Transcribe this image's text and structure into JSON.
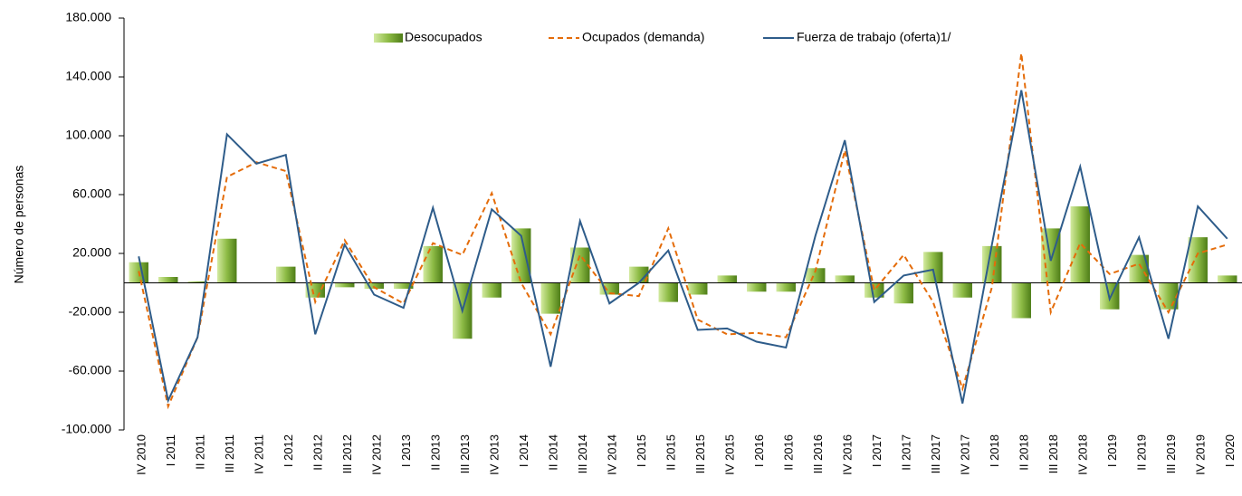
{
  "chart_data": {
    "type": "combo",
    "y_label": "Número de personas",
    "categories": [
      "IV 2010",
      "I 2011",
      "II 2011",
      "III 2011",
      "IV 2011",
      "I 2012",
      "II 2012",
      "III 2012",
      "IV 2012",
      "I 2013",
      "II 2013",
      "III 2013",
      "IV 2013",
      "I 2014",
      "II 2014",
      "III 2014",
      "IV 2014",
      "I 2015",
      "II 2015",
      "III 2015",
      "IV 2015",
      "I 2016",
      "II 2016",
      "III 2016",
      "IV 2016",
      "I 2017",
      "II 2017",
      "III 2017",
      "IV 2017",
      "I 2018",
      "II 2018",
      "III 2018",
      "IV 2018",
      "I 2019",
      "II 2019",
      "III 2019",
      "IV 2019",
      "I 2020"
    ],
    "series": [
      {
        "name": "Desocupados",
        "type": "bar",
        "color": "#77a832",
        "values": [
          14000,
          4000,
          1000,
          30000,
          0,
          11000,
          -10000,
          -3000,
          -4000,
          -4000,
          25000,
          -38000,
          -10000,
          37000,
          -21000,
          24000,
          -8000,
          11000,
          -13000,
          -8000,
          5000,
          -6000,
          -6000,
          10000,
          5000,
          -10000,
          -14000,
          21000,
          -10000,
          25000,
          -24000,
          37000,
          52000,
          -18000,
          19000,
          -18000,
          31000,
          5000
        ]
      },
      {
        "name": "Ocupados (demanda)",
        "type": "line",
        "dashed": true,
        "color": "#e46c0a",
        "values": [
          8000,
          -84000,
          -37000,
          72000,
          82000,
          76000,
          -13000,
          29000,
          -3000,
          -14000,
          27000,
          19000,
          61000,
          0,
          -35000,
          19000,
          -7000,
          -9000,
          37000,
          -25000,
          -35000,
          -34000,
          -37000,
          8000,
          90000,
          -5000,
          19000,
          -13000,
          -72000,
          -3000,
          156000,
          -20000,
          27000,
          6000,
          13000,
          -20000,
          20000,
          26000
        ]
      },
      {
        "name": "Fuerza de trabajo (oferta)1/",
        "type": "line",
        "dashed": false,
        "color": "#2e5c8a",
        "values": [
          18000,
          -80000,
          -37000,
          101000,
          81000,
          87000,
          -35000,
          26000,
          -8000,
          -17000,
          51000,
          -19000,
          50000,
          32000,
          -57000,
          42000,
          -14000,
          0,
          22000,
          -32000,
          -31000,
          -40000,
          -44000,
          32000,
          97000,
          -13000,
          5000,
          9000,
          -82000,
          26000,
          131000,
          15000,
          79000,
          -11000,
          31000,
          -38000,
          52000,
          30000
        ]
      }
    ],
    "ylim": [
      -100000,
      180000
    ],
    "yticks": [
      {
        "value": 180000,
        "label": "180.000"
      },
      {
        "value": 140000,
        "label": "140.000"
      },
      {
        "value": 100000,
        "label": "100.000"
      },
      {
        "value": 60000,
        "label": "60.000"
      },
      {
        "value": 20000,
        "label": "20.000"
      },
      {
        "value": -20000,
        "label": "-20.000"
      },
      {
        "value": -60000,
        "label": "-60.000"
      },
      {
        "value": -100000,
        "label": "-100.000"
      }
    ],
    "legend": "top"
  }
}
